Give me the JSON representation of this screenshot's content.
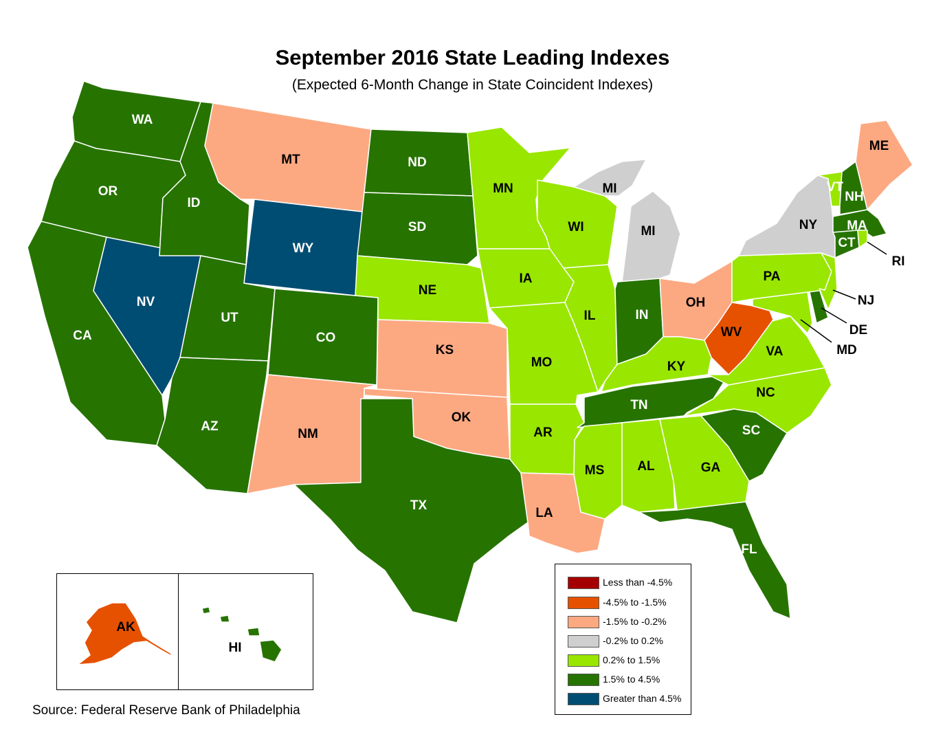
{
  "title": "September 2016 State Leading Indexes",
  "subtitle": "(Expected 6-Month Change in State Coincident Indexes)",
  "source": "Source: Federal Reserve Bank of Philadelphia",
  "colors": {
    "lt_neg4_5": "#a50000",
    "neg4_5_to_neg1_5": "#e65100",
    "neg1_5_to_neg0_2": "#fca982",
    "neg0_2_to_0_2": "#cfcfcf",
    "p0_2_to_1_5": "#99e600",
    "p1_5_to_4_5": "#267300",
    "gt_4_5": "#004d73"
  },
  "legend": [
    {
      "label": "Less than -4.5%",
      "key": "lt_neg4_5"
    },
    {
      "label": "-4.5% to -1.5%",
      "key": "neg4_5_to_neg1_5"
    },
    {
      "label": "-1.5% to -0.2%",
      "key": "neg1_5_to_neg0_2"
    },
    {
      "label": "-0.2% to 0.2%",
      "key": "neg0_2_to_0_2"
    },
    {
      "label": "0.2% to 1.5%",
      "key": "p0_2_to_1_5"
    },
    {
      "label": "1.5% to 4.5%",
      "key": "p1_5_to_4_5"
    },
    {
      "label": "Greater than 4.5%",
      "key": "gt_4_5"
    }
  ],
  "states": [
    {
      "abbr": "WA",
      "cat": "p1_5_to_4_5"
    },
    {
      "abbr": "OR",
      "cat": "p1_5_to_4_5"
    },
    {
      "abbr": "CA",
      "cat": "p1_5_to_4_5"
    },
    {
      "abbr": "NV",
      "cat": "gt_4_5"
    },
    {
      "abbr": "ID",
      "cat": "p1_5_to_4_5"
    },
    {
      "abbr": "MT",
      "cat": "neg1_5_to_neg0_2"
    },
    {
      "abbr": "WY",
      "cat": "gt_4_5"
    },
    {
      "abbr": "UT",
      "cat": "p1_5_to_4_5"
    },
    {
      "abbr": "CO",
      "cat": "p1_5_to_4_5"
    },
    {
      "abbr": "AZ",
      "cat": "p1_5_to_4_5"
    },
    {
      "abbr": "NM",
      "cat": "neg1_5_to_neg0_2"
    },
    {
      "abbr": "ND",
      "cat": "p1_5_to_4_5"
    },
    {
      "abbr": "SD",
      "cat": "p1_5_to_4_5"
    },
    {
      "abbr": "NE",
      "cat": "p0_2_to_1_5"
    },
    {
      "abbr": "KS",
      "cat": "neg1_5_to_neg0_2"
    },
    {
      "abbr": "OK",
      "cat": "neg1_5_to_neg0_2"
    },
    {
      "abbr": "TX",
      "cat": "p1_5_to_4_5"
    },
    {
      "abbr": "MN",
      "cat": "p0_2_to_1_5"
    },
    {
      "abbr": "IA",
      "cat": "p0_2_to_1_5"
    },
    {
      "abbr": "MO",
      "cat": "p0_2_to_1_5"
    },
    {
      "abbr": "AR",
      "cat": "p0_2_to_1_5"
    },
    {
      "abbr": "LA",
      "cat": "neg1_5_to_neg0_2"
    },
    {
      "abbr": "WI",
      "cat": "p0_2_to_1_5"
    },
    {
      "abbr": "IL",
      "cat": "p0_2_to_1_5"
    },
    {
      "abbr": "MI",
      "cat": "neg0_2_to_0_2"
    },
    {
      "abbr": "IN",
      "cat": "p1_5_to_4_5"
    },
    {
      "abbr": "OH",
      "cat": "neg1_5_to_neg0_2"
    },
    {
      "abbr": "KY",
      "cat": "p0_2_to_1_5"
    },
    {
      "abbr": "TN",
      "cat": "p1_5_to_4_5"
    },
    {
      "abbr": "MS",
      "cat": "p0_2_to_1_5"
    },
    {
      "abbr": "AL",
      "cat": "p0_2_to_1_5"
    },
    {
      "abbr": "GA",
      "cat": "p0_2_to_1_5"
    },
    {
      "abbr": "FL",
      "cat": "p1_5_to_4_5"
    },
    {
      "abbr": "SC",
      "cat": "p1_5_to_4_5"
    },
    {
      "abbr": "NC",
      "cat": "p0_2_to_1_5"
    },
    {
      "abbr": "VA",
      "cat": "p0_2_to_1_5"
    },
    {
      "abbr": "WV",
      "cat": "neg4_5_to_neg1_5"
    },
    {
      "abbr": "MD",
      "cat": "p0_2_to_1_5"
    },
    {
      "abbr": "DE",
      "cat": "p1_5_to_4_5"
    },
    {
      "abbr": "NJ",
      "cat": "p0_2_to_1_5"
    },
    {
      "abbr": "PA",
      "cat": "p0_2_to_1_5"
    },
    {
      "abbr": "NY",
      "cat": "neg0_2_to_0_2"
    },
    {
      "abbr": "VT",
      "cat": "p0_2_to_1_5"
    },
    {
      "abbr": "NH",
      "cat": "p1_5_to_4_5"
    },
    {
      "abbr": "ME",
      "cat": "neg1_5_to_neg0_2"
    },
    {
      "abbr": "MA",
      "cat": "p1_5_to_4_5"
    },
    {
      "abbr": "CT",
      "cat": "p1_5_to_4_5"
    },
    {
      "abbr": "RI",
      "cat": "p0_2_to_1_5"
    },
    {
      "abbr": "AK",
      "cat": "neg4_5_to_neg1_5"
    },
    {
      "abbr": "HI",
      "cat": "p1_5_to_4_5"
    }
  ]
}
